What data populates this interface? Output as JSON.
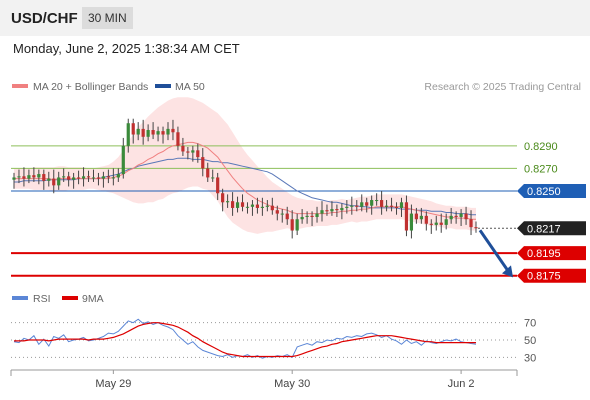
{
  "header": {
    "symbol": "USD/CHF",
    "timeframe": "30 MIN"
  },
  "date_line": "Monday, June 2, 2025 1:38:34 AM CET",
  "legend": {
    "ma20": "MA 20 + Bollinger Bands",
    "ma50": "MA 50",
    "credit": "Research © 2025 Trading Central"
  },
  "rsi_legend": {
    "rsi": "RSI",
    "ma": "9MA"
  },
  "colors": {
    "resistance": "#8dbf5a",
    "pivot": "#1f5fb5",
    "support": "#dd0000",
    "ma20": "#f08080",
    "ma50": "#5a78b8",
    "bollinger": "#fcd9d9",
    "candle_up": "#3a8a3a",
    "candle_down": "#c03030",
    "rsi": "#5b86d6",
    "rsi_ma": "#dd0000",
    "arrow": "#1f4f99"
  },
  "chart_data": {
    "type": "candlestick",
    "price_range": [
      0.8165,
      0.8335
    ],
    "levels": [
      {
        "label": "0.8290",
        "value": 0.829,
        "kind": "resistance"
      },
      {
        "label": "0.8270",
        "value": 0.827,
        "kind": "resistance"
      },
      {
        "label": "0.8250",
        "value": 0.825,
        "kind": "pivot"
      },
      {
        "label": "0.8217",
        "value": 0.8217,
        "kind": "last"
      },
      {
        "label": "0.8195",
        "value": 0.8195,
        "kind": "support"
      },
      {
        "label": "0.8175",
        "value": 0.8175,
        "kind": "support"
      }
    ],
    "x_ticks": [
      {
        "label": "May 29",
        "index": 20
      },
      {
        "label": "May 30",
        "index": 56
      },
      {
        "label": "Jun 2",
        "index": 90
      }
    ],
    "candle_count": 94,
    "close": [
      0.8262,
      0.8263,
      0.8261,
      0.8264,
      0.8262,
      0.8265,
      0.8259,
      0.8261,
      0.8255,
      0.8262,
      0.8263,
      0.826,
      0.8262,
      0.8261,
      0.8263,
      0.8262,
      0.8262,
      0.8261,
      0.8263,
      0.8262,
      0.8262,
      0.8265,
      0.829,
      0.831,
      0.83,
      0.8305,
      0.8298,
      0.8304,
      0.83,
      0.8303,
      0.83,
      0.8305,
      0.8302,
      0.829,
      0.8285,
      0.8284,
      0.8286,
      0.828,
      0.827,
      0.8262,
      0.8262,
      0.8248,
      0.824,
      0.8241,
      0.8235,
      0.824,
      0.8236,
      0.8236,
      0.8238,
      0.8235,
      0.8236,
      0.8237,
      0.8233,
      0.823,
      0.823,
      0.8225,
      0.8215,
      0.8225,
      0.8227,
      0.8228,
      0.8227,
      0.823,
      0.8233,
      0.8232,
      0.8234,
      0.8233,
      0.8235,
      0.8236,
      0.8237,
      0.8236,
      0.824,
      0.8237,
      0.8242,
      0.8242,
      0.8236,
      0.8237,
      0.8236,
      0.8235,
      0.824,
      0.8215,
      0.823,
      0.8225,
      0.8228,
      0.8221,
      0.822,
      0.8222,
      0.822,
      0.8225,
      0.8228,
      0.8227,
      0.823,
      0.8225,
      0.8218,
      0.8217
    ],
    "ma20": [
      0.8261,
      0.8261,
      0.8261,
      0.8261,
      0.8261,
      0.8261,
      0.8261,
      0.8261,
      0.826,
      0.8261,
      0.8261,
      0.8261,
      0.8261,
      0.8261,
      0.8261,
      0.8261,
      0.8261,
      0.8261,
      0.8261,
      0.8261,
      0.8262,
      0.8263,
      0.8265,
      0.8268,
      0.827,
      0.8273,
      0.8275,
      0.8278,
      0.828,
      0.8283,
      0.8285,
      0.8288,
      0.829,
      0.8291,
      0.8292,
      0.8293,
      0.8293,
      0.8292,
      0.829,
      0.8288,
      0.8284,
      0.828,
      0.8274,
      0.8268,
      0.8262,
      0.8257,
      0.8252,
      0.8248,
      0.8245,
      0.8242,
      0.824,
      0.8238,
      0.8236,
      0.8235,
      0.8234,
      0.8233,
      0.8231,
      0.823,
      0.823,
      0.823,
      0.823,
      0.823,
      0.823,
      0.823,
      0.8231,
      0.8231,
      0.8232,
      0.8232,
      0.8233,
      0.8233,
      0.8234,
      0.8234,
      0.8235,
      0.8236,
      0.8236,
      0.8236,
      0.8236,
      0.8236,
      0.8236,
      0.8235,
      0.8234,
      0.8233,
      0.8232,
      0.8231,
      0.823,
      0.8229,
      0.8228,
      0.8227,
      0.8227,
      0.8226,
      0.8226,
      0.8226,
      0.8225,
      0.8225
    ],
    "ma50": [
      0.8258,
      0.8258,
      0.8259,
      0.8259,
      0.8259,
      0.8259,
      0.8259,
      0.826,
      0.826,
      0.826,
      0.826,
      0.826,
      0.826,
      0.8261,
      0.8261,
      0.8261,
      0.8261,
      0.8261,
      0.8262,
      0.8263,
      0.8264,
      0.8265,
      0.8267,
      0.8269,
      0.827,
      0.8272,
      0.8273,
      0.8274,
      0.8275,
      0.8276,
      0.8277,
      0.8278,
      0.8278,
      0.8279,
      0.8279,
      0.8279,
      0.8278,
      0.8278,
      0.8278,
      0.8277,
      0.8276,
      0.8276,
      0.8275,
      0.8275,
      0.8274,
      0.8273,
      0.8272,
      0.8271,
      0.827,
      0.8269,
      0.8268,
      0.8267,
      0.8265,
      0.8262,
      0.8259,
      0.8256,
      0.8253,
      0.825,
      0.8248,
      0.8246,
      0.8244,
      0.8243,
      0.8242,
      0.8241,
      0.824,
      0.824,
      0.8239,
      0.8238,
      0.8237,
      0.8237,
      0.8236,
      0.8236,
      0.8235,
      0.8235,
      0.8235,
      0.8235,
      0.8235,
      0.8235,
      0.8234,
      0.8234,
      0.8234,
      0.8233,
      0.8233,
      0.8233,
      0.8232,
      0.8232,
      0.8232,
      0.8231,
      0.8231,
      0.823,
      0.823,
      0.823,
      0.8229,
      0.8229
    ],
    "bb_width": [
      0.0009,
      0.0009,
      0.0009,
      0.0009,
      0.001,
      0.001,
      0.001,
      0.001,
      0.0011,
      0.0011,
      0.0011,
      0.001,
      0.001,
      0.001,
      0.001,
      0.0009,
      0.0009,
      0.001,
      0.0011,
      0.0012,
      0.0014,
      0.0017,
      0.0021,
      0.0026,
      0.003,
      0.0034,
      0.0036,
      0.0038,
      0.004,
      0.0041,
      0.0042,
      0.0042,
      0.0042,
      0.0042,
      0.0041,
      0.004,
      0.0039,
      0.0038,
      0.0038,
      0.0037,
      0.0038,
      0.0039,
      0.004,
      0.0041,
      0.004,
      0.0038,
      0.0036,
      0.0034,
      0.0032,
      0.003,
      0.0027,
      0.0024,
      0.0022,
      0.002,
      0.0018,
      0.0016,
      0.0015,
      0.0014,
      0.0013,
      0.0012,
      0.0012,
      0.0011,
      0.0011,
      0.0011,
      0.0011,
      0.0011,
      0.0011,
      0.001,
      0.001,
      0.0011,
      0.0011,
      0.0011,
      0.0011,
      0.0011,
      0.0011,
      0.0011,
      0.0011,
      0.0011,
      0.0011,
      0.0011,
      0.0011,
      0.0011,
      0.0011,
      0.0011,
      0.0011,
      0.001,
      0.001,
      0.001,
      0.001,
      0.001,
      0.001,
      0.001,
      0.001,
      0.001
    ],
    "rsi": {
      "range": [
        20,
        80
      ],
      "ticks": [
        70,
        50,
        30
      ],
      "rsi": [
        48,
        47,
        52,
        50,
        55,
        45,
        51,
        43,
        54,
        52,
        56,
        48,
        50,
        51,
        53,
        49,
        50,
        52,
        54,
        58,
        57,
        60,
        66,
        72,
        70,
        74,
        69,
        71,
        68,
        70,
        67,
        65,
        62,
        55,
        50,
        45,
        48,
        42,
        38,
        36,
        34,
        32,
        31,
        33,
        30,
        32,
        31,
        33,
        30,
        32,
        29,
        31,
        30,
        32,
        31,
        33,
        30,
        42,
        44,
        46,
        44,
        48,
        47,
        50,
        49,
        52,
        51,
        54,
        53,
        55,
        54,
        57,
        58,
        56,
        53,
        55,
        51,
        49,
        45,
        50,
        46,
        48,
        44,
        49,
        47,
        46,
        48,
        50,
        49,
        51,
        48,
        47,
        46,
        45
      ],
      "ma": [
        49,
        49,
        49,
        50,
        50,
        50,
        50,
        49,
        50,
        51,
        51,
        51,
        51,
        51,
        51,
        50,
        51,
        51,
        51,
        52,
        53,
        55,
        57,
        60,
        63,
        66,
        68,
        69,
        70,
        70,
        69,
        68,
        67,
        65,
        62,
        59,
        55,
        52,
        48,
        45,
        42,
        39,
        36,
        34,
        33,
        32,
        31,
        31,
        31,
        31,
        31,
        31,
        31,
        31,
        31,
        31,
        31,
        32,
        34,
        36,
        38,
        40,
        42,
        43,
        45,
        46,
        48,
        49,
        50,
        51,
        52,
        53,
        54,
        55,
        55,
        55,
        55,
        54,
        53,
        52,
        51,
        50,
        49,
        48,
        48,
        47,
        47,
        47,
        47,
        47,
        47,
        47,
        47,
        47
      ]
    }
  }
}
